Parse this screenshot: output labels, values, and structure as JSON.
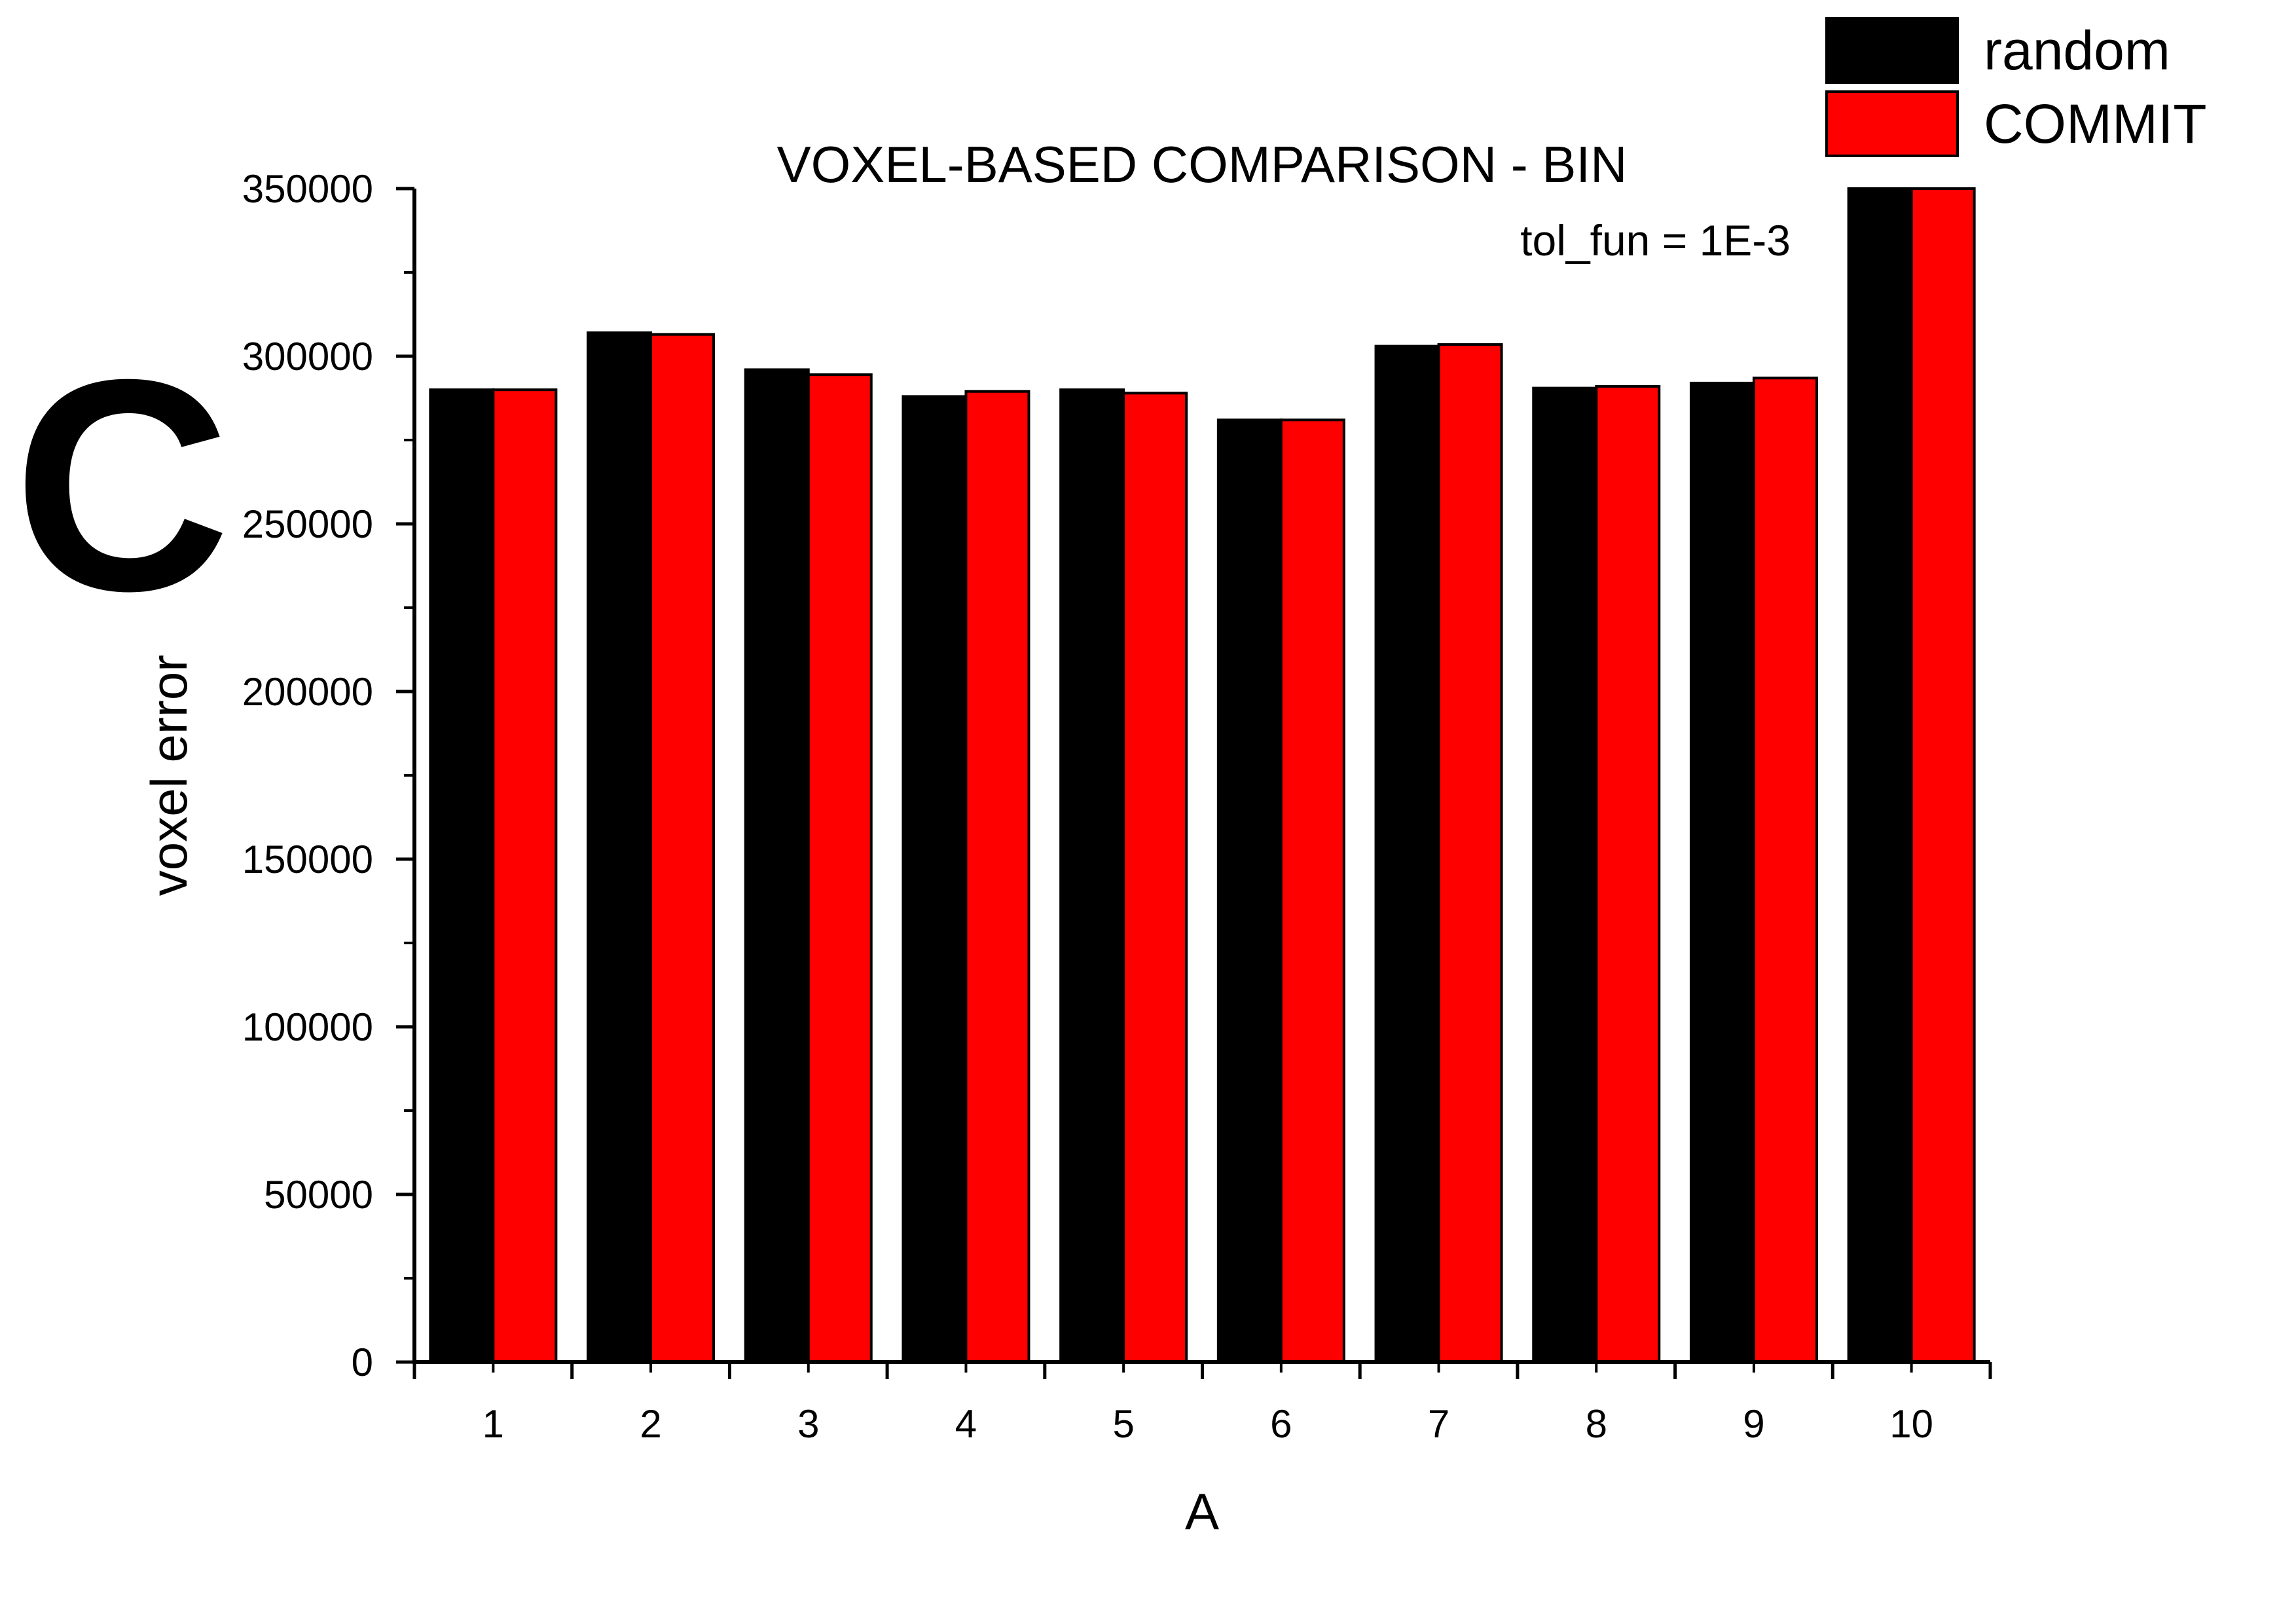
{
  "panel_letter": "C",
  "chart_data": {
    "type": "bar",
    "title": "VOXEL-BASED COMPARISON - BIN",
    "annotation": "tol_fun = 1E-3",
    "xlabel": "A",
    "ylabel": "voxel error",
    "categories": [
      "1",
      "2",
      "3",
      "4",
      "5",
      "6",
      "7",
      "8",
      "9",
      "10"
    ],
    "ylim": [
      0,
      350000
    ],
    "yticks": [
      0,
      50000,
      100000,
      150000,
      200000,
      250000,
      300000,
      350000
    ],
    "ytick_labels": [
      "0",
      "50000",
      "100000",
      "150000",
      "200000",
      "250000",
      "300000",
      "350000"
    ],
    "legend_position": "top-right",
    "series": [
      {
        "name": "random",
        "color": "#000000",
        "values": [
          290000,
          307000,
          296000,
          288000,
          290000,
          281000,
          303000,
          290500,
          292000,
          350000
        ]
      },
      {
        "name": "COMMIT",
        "color": "#ff0000",
        "values": [
          290000,
          306500,
          294500,
          289500,
          289000,
          281000,
          303500,
          291000,
          293500,
          350000
        ]
      }
    ]
  }
}
